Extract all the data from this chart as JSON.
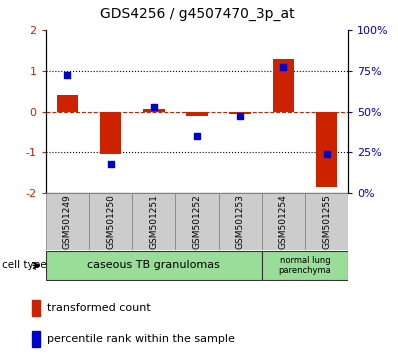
{
  "title": "GDS4256 / g4507470_3p_at",
  "samples": [
    "GSM501249",
    "GSM501250",
    "GSM501251",
    "GSM501252",
    "GSM501253",
    "GSM501254",
    "GSM501255"
  ],
  "red_values": [
    0.4,
    -1.05,
    0.05,
    -0.1,
    -0.05,
    1.3,
    -1.85
  ],
  "blue_values": [
    0.9,
    -1.3,
    0.1,
    -0.6,
    -0.1,
    1.1,
    -1.05
  ],
  "ylim": [
    -2,
    2
  ],
  "yticks_left": [
    -2,
    -1,
    0,
    1,
    2
  ],
  "yticks_right_vals": [
    -2,
    -1,
    0,
    1,
    2
  ],
  "yticks_right_labels": [
    "0%",
    "25%",
    "50%",
    "75%",
    "100%"
  ],
  "red_color": "#cc2200",
  "blue_color": "#0000cc",
  "bar_width": 0.5,
  "group1_label": "caseous TB granulomas",
  "group2_label": "normal lung\nparenchyma",
  "group1_indices": [
    0,
    1,
    2,
    3,
    4
  ],
  "group2_indices": [
    5,
    6
  ],
  "cell_type_label": "cell type",
  "legend1": "transformed count",
  "legend2": "percentile rank within the sample",
  "title_fontsize": 10,
  "tick_fontsize": 8,
  "sample_fontsize": 6.5,
  "group_fontsize": 8,
  "legend_fontsize": 8
}
